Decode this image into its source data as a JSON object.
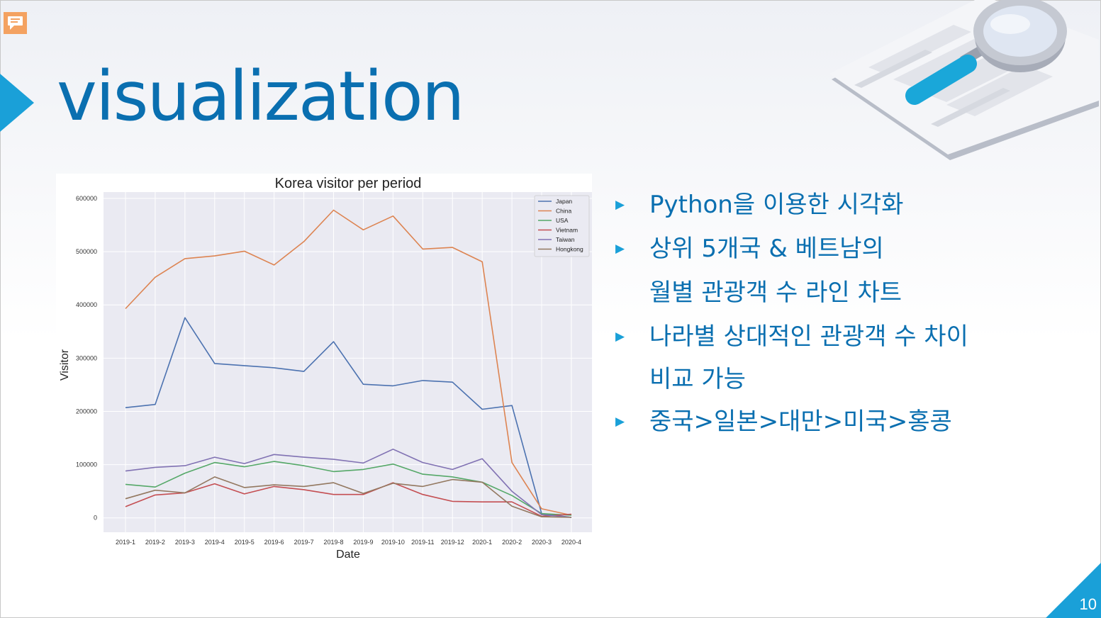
{
  "slide": {
    "title": "visualization",
    "page_number": "10",
    "bullets": [
      {
        "lines": [
          "Python을 이용한 시각화"
        ]
      },
      {
        "lines": [
          "상위 5개국 & 베트남의",
          "월별 관광객 수 라인 차트"
        ]
      },
      {
        "lines": [
          "나라별 상대적인 관광객 수 차이",
          "비교 가능"
        ]
      },
      {
        "lines": [
          "중국>일본>대만>미국>홍콩"
        ]
      }
    ],
    "colors": {
      "title": "#0a6fb0",
      "accent": "#1aa0d8",
      "bullet_text": "#0a6fb0"
    }
  },
  "chart_data": {
    "type": "line",
    "title": "Korea visitor per period",
    "xlabel": "Date",
    "ylabel": "Visitor",
    "ylim": [
      -27000,
      612000
    ],
    "yticks": [
      0,
      100000,
      200000,
      300000,
      400000,
      500000,
      600000
    ],
    "grid": true,
    "legend_position": "top-right",
    "categories": [
      "2019-1",
      "2019-2",
      "2019-3",
      "2019-4",
      "2019-5",
      "2019-6",
      "2019-7",
      "2019-8",
      "2019-9",
      "2019-10",
      "2019-11",
      "2019-12",
      "2020-1",
      "2020-2",
      "2020-3",
      "2020-4"
    ],
    "series": [
      {
        "name": "Japan",
        "color": "#4c72b0",
        "values": [
          207000,
          213000,
          376000,
          290000,
          286000,
          282000,
          275000,
          331000,
          251000,
          248000,
          258000,
          255000,
          204000,
          211000,
          8000,
          1000
        ]
      },
      {
        "name": "China",
        "color": "#dd8452",
        "values": [
          393000,
          452000,
          487000,
          492000,
          501000,
          475000,
          519000,
          578000,
          541000,
          567000,
          505000,
          508000,
          481000,
          104000,
          17000,
          5000
        ]
      },
      {
        "name": "USA",
        "color": "#55a868",
        "values": [
          63000,
          58000,
          84000,
          104000,
          96000,
          106000,
          98000,
          87000,
          91000,
          101000,
          82000,
          77000,
          67000,
          42000,
          8000,
          5000
        ]
      },
      {
        "name": "Vietnam",
        "color": "#c44e52",
        "values": [
          21000,
          43000,
          47000,
          64000,
          45000,
          59000,
          53000,
          44000,
          44000,
          66000,
          44000,
          31000,
          30000,
          30000,
          3000,
          7000
        ]
      },
      {
        "name": "Taiwan",
        "color": "#8172b3",
        "values": [
          88000,
          95000,
          98000,
          114000,
          102000,
          119000,
          114000,
          110000,
          103000,
          129000,
          104000,
          91000,
          111000,
          50000,
          6000,
          1000
        ]
      },
      {
        "name": "Hongkong",
        "color": "#937860",
        "values": [
          36000,
          52000,
          47000,
          77000,
          57000,
          62000,
          59000,
          66000,
          46000,
          65000,
          59000,
          72000,
          67000,
          22000,
          2000,
          1000
        ]
      }
    ]
  }
}
